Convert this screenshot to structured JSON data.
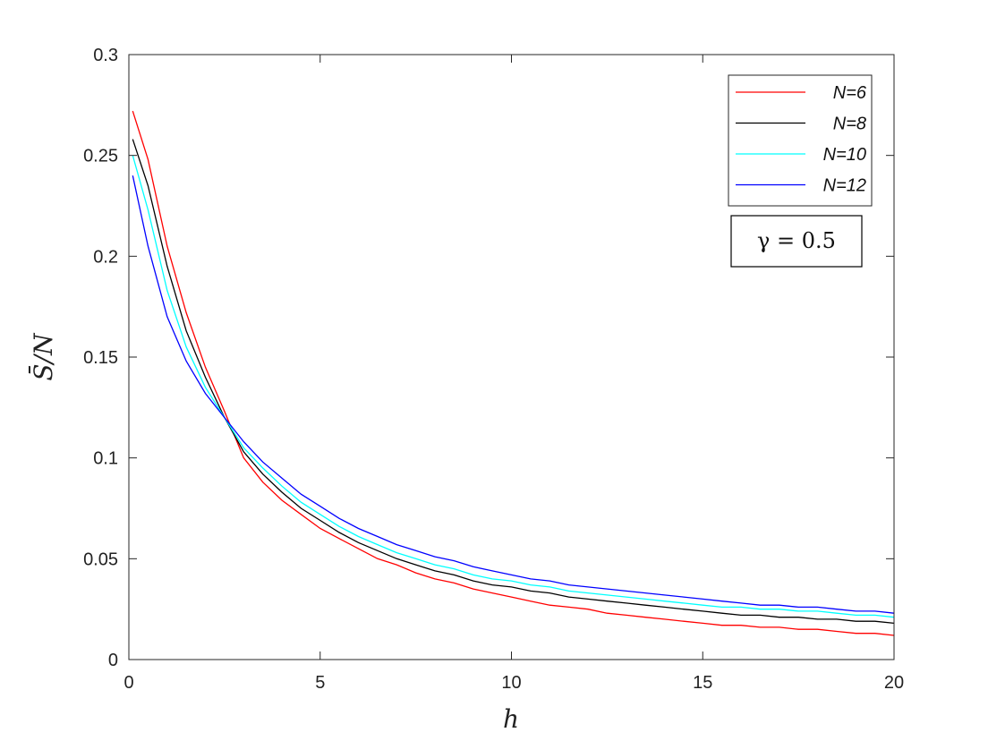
{
  "chart_data": {
    "type": "line",
    "xlabel": "h",
    "ylabel": "S̄/N",
    "xlim": [
      0,
      20
    ],
    "ylim": [
      0,
      0.3
    ],
    "xticks": [
      0,
      5,
      10,
      15,
      20
    ],
    "xtick_labels": [
      "0",
      "5",
      "10",
      "15",
      "20"
    ],
    "yticks": [
      0,
      0.05,
      0.1,
      0.15,
      0.2,
      0.25,
      0.3
    ],
    "ytick_labels": [
      "0",
      "0.05",
      "0.1",
      "0.15",
      "0.2",
      "0.25",
      "0.3"
    ],
    "grid": false,
    "legend_position": "top-right",
    "annotation": "γ = 0.5",
    "series": [
      {
        "name": "N=6",
        "color": "#ff0000",
        "x": [
          0.1,
          0.5,
          1,
          1.5,
          2,
          2.5,
          3,
          3.5,
          4,
          4.5,
          5,
          5.5,
          6,
          6.5,
          7,
          7.5,
          8,
          8.5,
          9,
          9.5,
          10,
          10.5,
          11,
          11.5,
          12,
          12.5,
          13,
          13.5,
          14,
          14.5,
          15,
          15.5,
          16,
          16.5,
          17,
          17.5,
          18,
          18.5,
          19,
          19.5,
          20
        ],
        "y": [
          0.272,
          0.248,
          0.205,
          0.172,
          0.145,
          0.123,
          0.1,
          0.088,
          0.079,
          0.072,
          0.065,
          0.06,
          0.055,
          0.05,
          0.047,
          0.043,
          0.04,
          0.038,
          0.035,
          0.033,
          0.031,
          0.029,
          0.027,
          0.026,
          0.025,
          0.023,
          0.022,
          0.021,
          0.02,
          0.019,
          0.018,
          0.017,
          0.017,
          0.016,
          0.016,
          0.015,
          0.015,
          0.014,
          0.013,
          0.013,
          0.012
        ]
      },
      {
        "name": "N=8",
        "color": "#000000",
        "x": [
          0.1,
          0.5,
          1,
          1.5,
          2,
          2.5,
          3,
          3.5,
          4,
          4.5,
          5,
          5.5,
          6,
          6.5,
          7,
          7.5,
          8,
          8.5,
          9,
          9.5,
          10,
          10.5,
          11,
          11.5,
          12,
          12.5,
          13,
          13.5,
          14,
          14.5,
          15,
          15.5,
          16,
          16.5,
          17,
          17.5,
          18,
          18.5,
          19,
          19.5,
          20
        ],
        "y": [
          0.258,
          0.235,
          0.195,
          0.163,
          0.14,
          0.12,
          0.103,
          0.092,
          0.083,
          0.075,
          0.069,
          0.063,
          0.058,
          0.054,
          0.05,
          0.047,
          0.044,
          0.042,
          0.039,
          0.037,
          0.036,
          0.034,
          0.033,
          0.031,
          0.03,
          0.029,
          0.028,
          0.027,
          0.026,
          0.025,
          0.024,
          0.023,
          0.022,
          0.022,
          0.021,
          0.021,
          0.02,
          0.02,
          0.019,
          0.019,
          0.018
        ]
      },
      {
        "name": "N=10",
        "color": "#00ffff",
        "x": [
          0.1,
          0.5,
          1,
          1.5,
          2,
          2.5,
          3,
          3.5,
          4,
          4.5,
          5,
          5.5,
          6,
          6.5,
          7,
          7.5,
          8,
          8.5,
          9,
          9.5,
          10,
          10.5,
          11,
          11.5,
          12,
          12.5,
          13,
          13.5,
          14,
          14.5,
          15,
          15.5,
          16,
          16.5,
          17,
          17.5,
          18,
          18.5,
          19,
          19.5,
          20
        ],
        "y": [
          0.25,
          0.223,
          0.183,
          0.155,
          0.135,
          0.12,
          0.105,
          0.095,
          0.086,
          0.078,
          0.072,
          0.066,
          0.061,
          0.057,
          0.053,
          0.05,
          0.047,
          0.045,
          0.042,
          0.04,
          0.039,
          0.037,
          0.036,
          0.034,
          0.033,
          0.032,
          0.031,
          0.03,
          0.029,
          0.028,
          0.027,
          0.026,
          0.026,
          0.025,
          0.025,
          0.024,
          0.024,
          0.023,
          0.022,
          0.022,
          0.021
        ]
      },
      {
        "name": "N=12",
        "color": "#0000ff",
        "x": [
          0.1,
          0.5,
          1,
          1.5,
          2,
          2.5,
          3,
          3.5,
          4,
          4.5,
          5,
          5.5,
          6,
          6.5,
          7,
          7.5,
          8,
          8.5,
          9,
          9.5,
          10,
          10.5,
          11,
          11.5,
          12,
          12.5,
          13,
          13.5,
          14,
          14.5,
          15,
          15.5,
          16,
          16.5,
          17,
          17.5,
          18,
          18.5,
          19,
          19.5,
          20
        ],
        "y": [
          0.24,
          0.205,
          0.17,
          0.148,
          0.132,
          0.12,
          0.108,
          0.098,
          0.09,
          0.082,
          0.076,
          0.07,
          0.065,
          0.061,
          0.057,
          0.054,
          0.051,
          0.049,
          0.046,
          0.044,
          0.042,
          0.04,
          0.039,
          0.037,
          0.036,
          0.035,
          0.034,
          0.033,
          0.032,
          0.031,
          0.03,
          0.029,
          0.028,
          0.027,
          0.027,
          0.026,
          0.026,
          0.025,
          0.024,
          0.024,
          0.023
        ]
      }
    ]
  }
}
